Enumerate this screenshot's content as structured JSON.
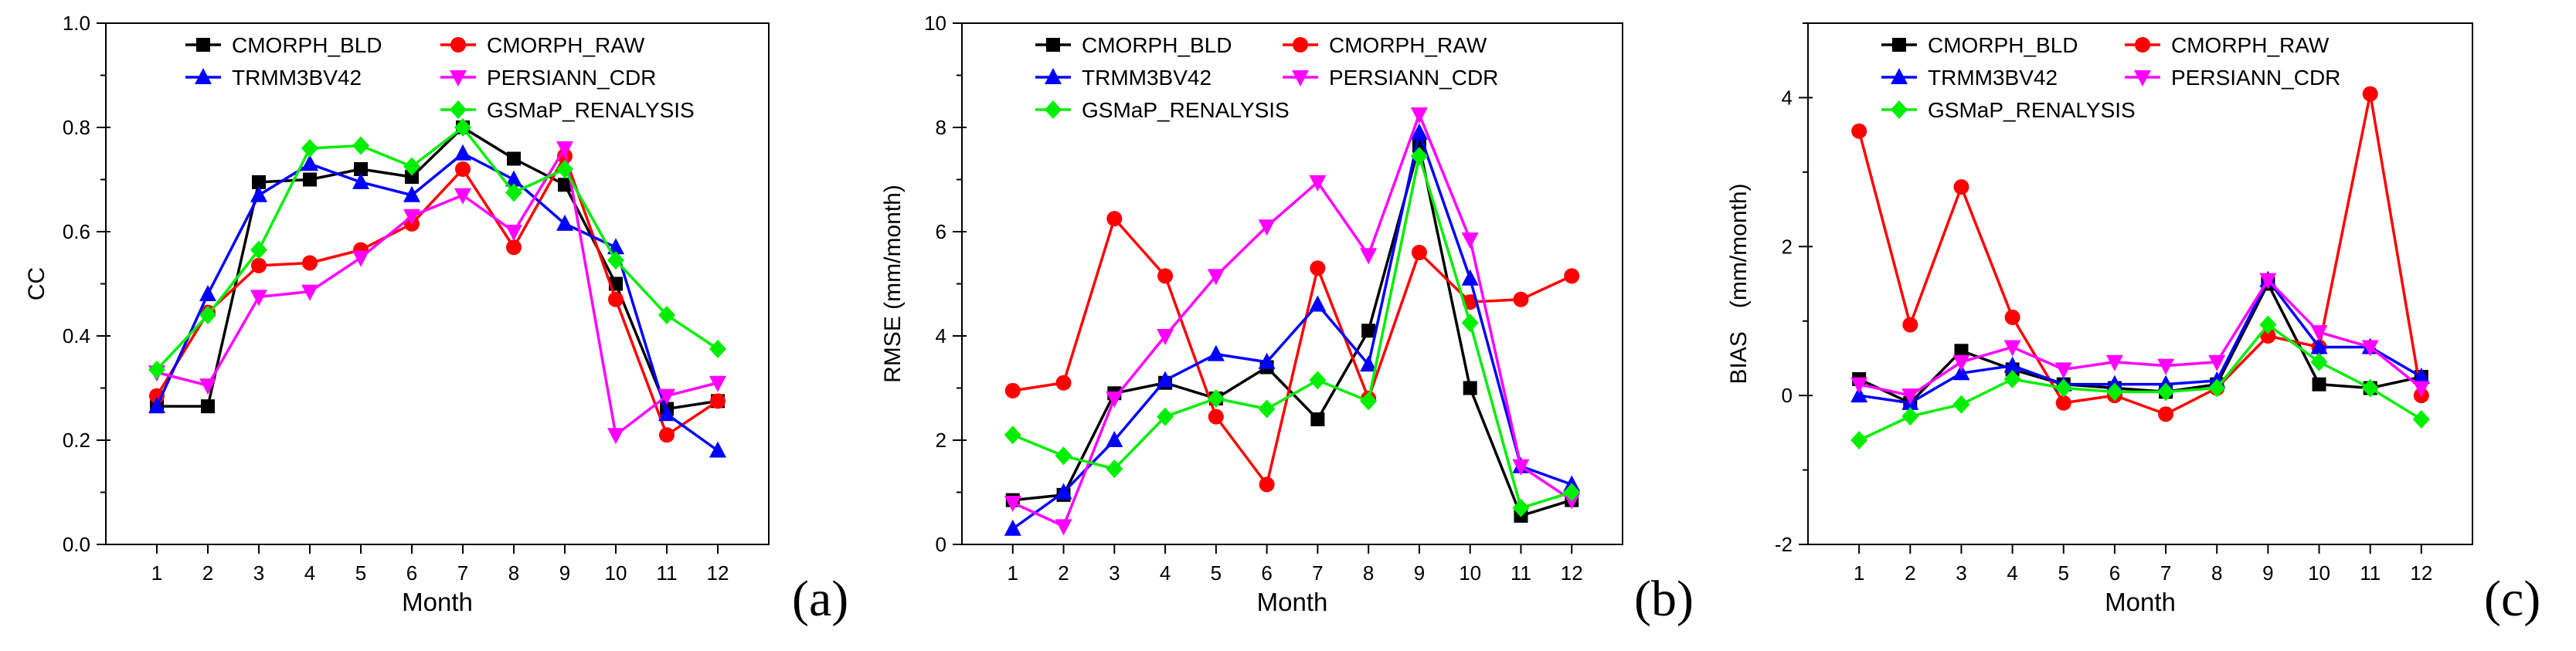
{
  "chart_data": [
    {
      "type": "line",
      "panel_label": "(a)",
      "xlabel": "Month",
      "ylabel": "CC",
      "ylim": [
        0.0,
        1.0
      ],
      "yticks": [
        "0.0",
        "0.2",
        "0.4",
        "0.6",
        "0.8",
        "1.0"
      ],
      "x": [
        1,
        2,
        3,
        4,
        5,
        6,
        7,
        8,
        9,
        10,
        11,
        12
      ],
      "xticks": [
        "1",
        "2",
        "3",
        "4",
        "5",
        "6",
        "7",
        "8",
        "9",
        "10",
        "11",
        "12"
      ],
      "legend": "top-left",
      "series": [
        {
          "name": "CMORPH_BLD",
          "color": "#000000",
          "marker": "square",
          "values": [
            0.265,
            0.265,
            0.695,
            0.7,
            0.72,
            0.705,
            0.8,
            0.74,
            0.69,
            0.5,
            0.26,
            0.275
          ]
        },
        {
          "name": "CMORPH_RAW",
          "color": "#ff0000",
          "marker": "circle",
          "values": [
            0.285,
            0.445,
            0.535,
            0.54,
            0.565,
            0.615,
            0.72,
            0.57,
            0.745,
            0.47,
            0.21,
            0.275
          ]
        },
        {
          "name": "TRMM3BV42",
          "color": "#0000ff",
          "marker": "triangle-up",
          "values": [
            0.265,
            0.48,
            0.67,
            0.73,
            0.695,
            0.67,
            0.75,
            0.7,
            0.615,
            0.57,
            0.25,
            0.18
          ]
        },
        {
          "name": "PERSIANN_CDR",
          "color": "#ff00ff",
          "marker": "triangle-down",
          "values": [
            0.33,
            0.305,
            0.475,
            0.485,
            0.55,
            0.63,
            0.67,
            0.6,
            0.76,
            0.21,
            0.285,
            0.31
          ]
        },
        {
          "name": "GSMaP_RENALYSIS",
          "color": "#00ee00",
          "marker": "diamond",
          "values": [
            0.335,
            0.44,
            0.565,
            0.76,
            0.765,
            0.725,
            0.8,
            0.675,
            0.72,
            0.545,
            0.44,
            0.375
          ]
        }
      ]
    },
    {
      "type": "line",
      "panel_label": "(b)",
      "xlabel": "Month",
      "ylabel": "RMSE (mm/month)",
      "ylim": [
        0,
        10
      ],
      "yticks": [
        "0",
        "2",
        "4",
        "6",
        "8",
        "10"
      ],
      "x": [
        1,
        2,
        3,
        4,
        5,
        6,
        7,
        8,
        9,
        10,
        11,
        12
      ],
      "xticks": [
        "1",
        "2",
        "3",
        "4",
        "5",
        "6",
        "7",
        "8",
        "9",
        "10",
        "11",
        "12"
      ],
      "legend": "top-left",
      "series": [
        {
          "name": "CMORPH_BLD",
          "color": "#000000",
          "marker": "square",
          "values": [
            0.85,
            0.95,
            2.9,
            3.1,
            2.8,
            3.4,
            2.4,
            4.1,
            7.65,
            3.0,
            0.55,
            0.85
          ]
        },
        {
          "name": "CMORPH_RAW",
          "color": "#ff0000",
          "marker": "circle",
          "values": [
            2.95,
            3.1,
            6.25,
            5.15,
            2.45,
            1.15,
            5.3,
            2.8,
            5.6,
            4.65,
            4.7,
            5.15
          ]
        },
        {
          "name": "TRMM3BV42",
          "color": "#0000ff",
          "marker": "triangle-up",
          "values": [
            0.3,
            1.0,
            2.0,
            3.15,
            3.65,
            3.5,
            4.6,
            3.45,
            7.9,
            5.1,
            1.5,
            1.15
          ]
        },
        {
          "name": "PERSIANN_CDR",
          "color": "#ff00ff",
          "marker": "triangle-down",
          "values": [
            0.8,
            0.35,
            2.8,
            4.0,
            5.15,
            6.1,
            6.95,
            5.55,
            8.25,
            5.85,
            1.5,
            0.85
          ]
        },
        {
          "name": "GSMaP_RENALYSIS",
          "color": "#00ee00",
          "marker": "diamond",
          "values": [
            2.1,
            1.7,
            1.45,
            2.45,
            2.8,
            2.6,
            3.15,
            2.75,
            7.45,
            4.25,
            0.7,
            1.0
          ]
        }
      ]
    },
    {
      "type": "line",
      "panel_label": "(c)",
      "xlabel": "Month",
      "ylabel": "BIAS　(mm/month)",
      "ylim": [
        -2,
        5
      ],
      "yticks": [
        "-2",
        "0",
        "2",
        "4"
      ],
      "x": [
        1,
        2,
        3,
        4,
        5,
        6,
        7,
        8,
        9,
        10,
        11,
        12
      ],
      "xticks": [
        "1",
        "2",
        "3",
        "4",
        "5",
        "6",
        "7",
        "8",
        "9",
        "10",
        "11",
        "12"
      ],
      "legend": "top-left",
      "series": [
        {
          "name": "CMORPH_BLD",
          "color": "#000000",
          "marker": "square",
          "values": [
            0.22,
            -0.1,
            0.6,
            0.35,
            0.15,
            0.1,
            0.05,
            0.15,
            1.5,
            0.15,
            0.1,
            0.25
          ]
        },
        {
          "name": "CMORPH_RAW",
          "color": "#ff0000",
          "marker": "circle",
          "values": [
            3.55,
            0.95,
            2.8,
            1.05,
            -0.1,
            0.0,
            -0.25,
            0.1,
            0.8,
            0.65,
            4.05,
            0.0
          ]
        },
        {
          "name": "TRMM3BV42",
          "color": "#0000ff",
          "marker": "triangle-up",
          "values": [
            0.0,
            -0.1,
            0.3,
            0.4,
            0.15,
            0.15,
            0.15,
            0.2,
            1.55,
            0.65,
            0.65,
            0.25
          ]
        },
        {
          "name": "PERSIANN_CDR",
          "color": "#ff00ff",
          "marker": "triangle-down",
          "values": [
            0.15,
            0.0,
            0.45,
            0.65,
            0.35,
            0.45,
            0.4,
            0.45,
            1.55,
            0.85,
            0.65,
            0.1
          ]
        },
        {
          "name": "GSMaP_RENALYSIS",
          "color": "#00ee00",
          "marker": "diamond",
          "values": [
            -0.6,
            -0.28,
            -0.12,
            0.22,
            0.1,
            0.05,
            0.05,
            0.1,
            0.95,
            0.45,
            0.1,
            -0.32
          ]
        }
      ]
    }
  ]
}
